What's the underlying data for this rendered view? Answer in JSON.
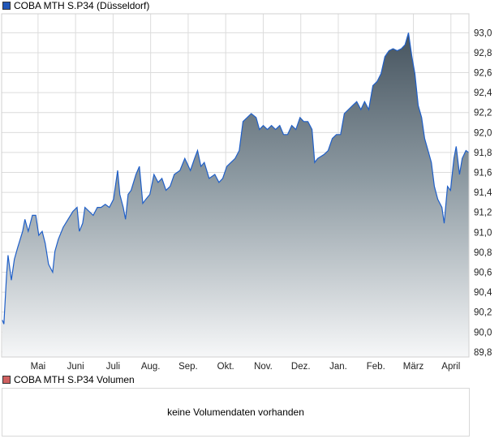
{
  "chart_data": {
    "type": "area",
    "title": "COBA MTH S.P34 (Düsseldorf)",
    "legend_color": "#2157b8",
    "line_color": "#1f5fc8",
    "x_unit": "months since 1 May",
    "xlim": [
      -0.97,
      11.48
    ],
    "ylim": [
      89.75,
      93.19
    ],
    "grid": true,
    "y_ticks": [
      89.8,
      90.0,
      90.2,
      90.4,
      90.6,
      90.8,
      91.0,
      91.2,
      91.4,
      91.6,
      91.8,
      92.0,
      92.2,
      92.4,
      92.6,
      92.8,
      93.0
    ],
    "y_tick_labels": [
      "89,8",
      "90,0",
      "90,2",
      "90,4",
      "90,6",
      "90,8",
      "91,0",
      "91,2",
      "91,4",
      "91,6",
      "91,8",
      "92,0",
      "92,2",
      "92,4",
      "92,6",
      "92,8",
      "93,0"
    ],
    "x_ticks": [
      0,
      1,
      2,
      3,
      4,
      5,
      6,
      7,
      8,
      9,
      10,
      11
    ],
    "x_tick_labels": [
      "Mai",
      "Juni",
      "Juli",
      "Aug.",
      "Sep.",
      "Okt.",
      "Nov.",
      "Dez.",
      "Jan.",
      "Feb.",
      "März",
      "April"
    ],
    "x": [
      -0.95,
      -0.91,
      -0.84,
      -0.8,
      -0.71,
      -0.63,
      -0.54,
      -0.41,
      -0.35,
      -0.26,
      -0.15,
      -0.06,
      0.02,
      0.11,
      0.19,
      0.28,
      0.39,
      0.45,
      0.54,
      0.67,
      0.8,
      0.93,
      1.04,
      1.1,
      1.19,
      1.25,
      1.36,
      1.47,
      1.58,
      1.68,
      1.79,
      1.9,
      2.01,
      2.12,
      2.18,
      2.27,
      2.33,
      2.4,
      2.48,
      2.61,
      2.7,
      2.79,
      2.87,
      2.98,
      3.09,
      3.2,
      3.3,
      3.41,
      3.52,
      3.63,
      3.78,
      3.91,
      4.06,
      4.17,
      4.25,
      4.34,
      4.43,
      4.56,
      4.71,
      4.82,
      4.92,
      5.03,
      5.14,
      5.25,
      5.36,
      5.46,
      5.57,
      5.68,
      5.81,
      5.9,
      6.0,
      6.11,
      6.22,
      6.33,
      6.44,
      6.54,
      6.65,
      6.76,
      6.87,
      6.98,
      7.08,
      7.19,
      7.3,
      7.37,
      7.45,
      7.62,
      7.73,
      7.84,
      7.95,
      8.06,
      8.16,
      8.27,
      8.38,
      8.49,
      8.6,
      8.7,
      8.81,
      8.92,
      9.03,
      9.14,
      9.24,
      9.35,
      9.46,
      9.57,
      9.68,
      9.78,
      9.87,
      9.96,
      10.04,
      10.13,
      10.22,
      10.3,
      10.39,
      10.48,
      10.56,
      10.65,
      10.76,
      10.82,
      10.91,
      10.99,
      11.08,
      11.14,
      11.23,
      11.3,
      11.4,
      11.47
    ],
    "values": [
      90.12,
      90.08,
      90.56,
      90.77,
      90.52,
      90.73,
      90.85,
      91.01,
      91.13,
      91.01,
      91.17,
      91.17,
      90.97,
      91.01,
      90.89,
      90.68,
      90.6,
      90.81,
      90.93,
      91.05,
      91.13,
      91.21,
      91.25,
      91.01,
      91.09,
      91.25,
      91.21,
      91.17,
      91.25,
      91.25,
      91.28,
      91.25,
      91.33,
      91.62,
      91.38,
      91.25,
      91.13,
      91.38,
      91.42,
      91.58,
      91.66,
      91.29,
      91.33,
      91.38,
      91.58,
      91.5,
      91.54,
      91.42,
      91.46,
      91.58,
      91.62,
      91.74,
      91.62,
      91.74,
      91.82,
      91.66,
      91.7,
      91.54,
      91.58,
      91.5,
      91.54,
      91.66,
      91.7,
      91.74,
      91.82,
      92.11,
      92.15,
      92.19,
      92.15,
      92.03,
      92.07,
      92.03,
      92.07,
      92.03,
      92.07,
      91.98,
      91.98,
      92.07,
      92.03,
      92.15,
      92.11,
      92.11,
      92.03,
      91.7,
      91.74,
      91.78,
      91.82,
      91.94,
      91.98,
      91.98,
      92.19,
      92.23,
      92.27,
      92.31,
      92.23,
      92.31,
      92.23,
      92.47,
      92.51,
      92.59,
      92.76,
      92.82,
      92.84,
      92.82,
      92.84,
      92.88,
      93.0,
      92.76,
      92.59,
      92.27,
      92.15,
      91.94,
      91.82,
      91.7,
      91.46,
      91.33,
      91.25,
      91.09,
      91.46,
      91.42,
      91.74,
      91.86,
      91.58,
      91.74,
      91.82,
      91.8
    ]
  },
  "volume": {
    "title": "COBA MTH S.P34 Volumen",
    "legend_color": "#d06060",
    "message": "keine Volumendaten vorhanden"
  }
}
